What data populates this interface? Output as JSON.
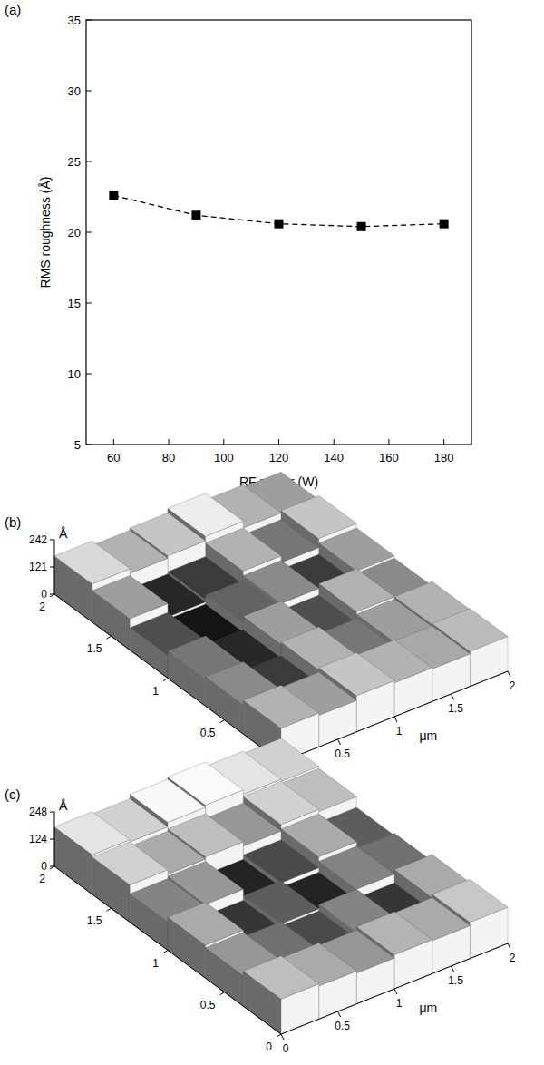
{
  "chart_data": [
    {
      "type": "line",
      "panel": "(a)",
      "x": [
        60,
        90,
        120,
        150,
        180
      ],
      "values": [
        22.6,
        21.2,
        20.6,
        20.4,
        20.6
      ],
      "color": "#000000",
      "marker": "square",
      "line_style": "dashed",
      "xlabel": "RF power (W)",
      "ylabel": "RMS roughness (Å)",
      "xlim": [
        50,
        190
      ],
      "ylim": [
        5,
        35
      ],
      "xticks": [
        60,
        80,
        100,
        120,
        140,
        160,
        180
      ],
      "yticks": [
        5,
        10,
        15,
        20,
        25,
        30,
        35
      ]
    },
    {
      "type": "surface",
      "panel": "(b)",
      "xlabel": "μm",
      "zlabel": "Å",
      "xlim": [
        0,
        2
      ],
      "xticks": [
        0,
        0.5,
        1,
        1.5,
        2
      ],
      "ylim": [
        0,
        2
      ],
      "yticks": [
        0,
        0.5,
        1,
        1.5,
        2
      ],
      "zlim": [
        0,
        242
      ],
      "zticks": [
        0,
        121,
        242
      ],
      "surface": [
        [
          150,
          140,
          160,
          150,
          145,
          155
        ],
        [
          130,
          90,
          150,
          120,
          140,
          150
        ],
        [
          120,
          80,
          140,
          100,
          150,
          130
        ],
        [
          100,
          70,
          110,
          130,
          90,
          140
        ],
        [
          140,
          80,
          90,
          150,
          120,
          160
        ],
        [
          170,
          150,
          160,
          180,
          150,
          140
        ]
      ]
    },
    {
      "type": "surface",
      "panel": "(c)",
      "xlabel": "μm",
      "zlabel": "Å",
      "xlim": [
        0,
        2
      ],
      "xticks": [
        0,
        0.5,
        1,
        1.5,
        2
      ],
      "ylim": [
        0,
        2
      ],
      "yticks": [
        0,
        0.5,
        1,
        1.5,
        2
      ],
      "zlim": [
        0,
        248
      ],
      "zticks": [
        0,
        124,
        248
      ],
      "surface": [
        [
          160,
          150,
          140,
          155,
          150,
          165
        ],
        [
          140,
          120,
          100,
          130,
          90,
          150
        ],
        [
          150,
          90,
          110,
          80,
          130,
          120
        ],
        [
          130,
          140,
          80,
          100,
          150,
          110
        ],
        [
          170,
          150,
          160,
          140,
          170,
          160
        ],
        [
          180,
          170,
          190,
          200,
          180,
          170
        ]
      ]
    }
  ]
}
